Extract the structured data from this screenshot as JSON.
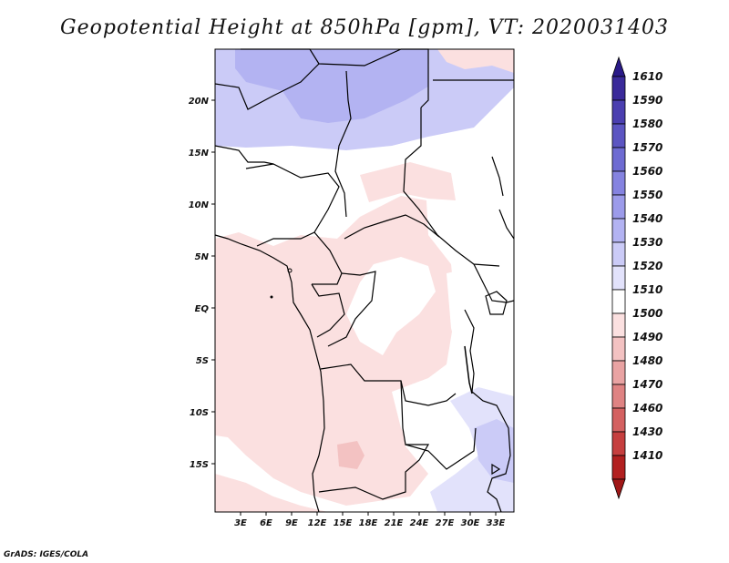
{
  "title": "Geopotential Height at 850hPa [gpm], VT: 2020031403",
  "footer": "GrADS: IGES/COLA",
  "map": {
    "lat_labels": [
      "20N",
      "15N",
      "10N",
      "5N",
      "EQ",
      "5S",
      "10S",
      "15S"
    ],
    "lon_labels": [
      "3E",
      "6E",
      "9E",
      "12E",
      "15E",
      "18E",
      "21E",
      "24E",
      "27E",
      "30E",
      "33E"
    ]
  },
  "colorbar": {
    "labels": [
      "1610",
      "1590",
      "1580",
      "1570",
      "1560",
      "1550",
      "1540",
      "1530",
      "1520",
      "1510",
      "1500",
      "1490",
      "1480",
      "1470",
      "1460",
      "1430",
      "1410"
    ],
    "colors": [
      "#3a2a9a",
      "#4b3fb0",
      "#5c55c2",
      "#6e6bd2",
      "#8583e0",
      "#9c9bea",
      "#b3b3f2",
      "#cbcbf7",
      "#e2e2fb",
      "#ffffff",
      "#fbe0e0",
      "#f3c2c2",
      "#e9a3a3",
      "#df8383",
      "#d46161",
      "#c63f3f",
      "#b22020"
    ],
    "top_color": "#2a1a88",
    "bottom_color": "#a01818"
  },
  "colors": {
    "pink": "#fbe0e0",
    "pink_dark": "#f3c2c2",
    "pink_darker": "#e9a3a3",
    "lav_light": "#e2e2fb",
    "lav": "#cbcbf7",
    "lav_dark": "#b3b3f2"
  }
}
